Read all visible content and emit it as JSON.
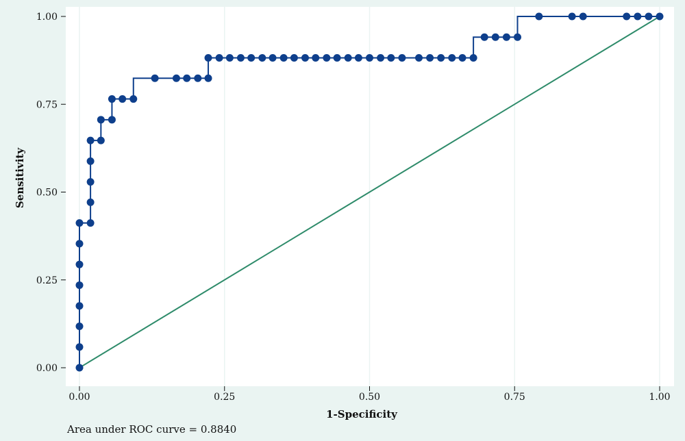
{
  "chart_data": {
    "type": "line",
    "xlabel": "1-Specificity",
    "ylabel": "Sensitivity",
    "note": "Area under ROC curve = 0.8840",
    "xlim": [
      0,
      1
    ],
    "ylim": [
      0,
      1
    ],
    "xticks": [
      "0.00",
      "0.25",
      "0.50",
      "0.75",
      "1.00"
    ],
    "yticks": [
      "0.00",
      "0.25",
      "0.50",
      "0.75",
      "1.00"
    ],
    "grid": "vertical",
    "colors": {
      "background": "#eaf4f2",
      "plot": "#ffffff",
      "roc": "#0e3f8c",
      "reference": "#2e8b6a",
      "grid": "#eaf4f2"
    },
    "series": [
      {
        "x": [
          0,
          0,
          0,
          0,
          0,
          0,
          0,
          0,
          0.019,
          0.019,
          0.019,
          0.019,
          0.019,
          0.037,
          0.037,
          0.056,
          0.056,
          0.074,
          0.093,
          0.13,
          0.167,
          0.185,
          0.204,
          0.222,
          0.222,
          0.241,
          0.259,
          0.278,
          0.296,
          0.315,
          0.333,
          0.352,
          0.37,
          0.389,
          0.407,
          0.426,
          0.444,
          0.463,
          0.481,
          0.5,
          0.519,
          0.537,
          0.556,
          0.585,
          0.604,
          0.623,
          0.642,
          0.66,
          0.679,
          0.698,
          0.717,
          0.736,
          0.755,
          0.792,
          0.849,
          0.868,
          0.943,
          0.962,
          0.981,
          1.0
        ],
        "y": [
          0,
          0.059,
          0.118,
          0.176,
          0.235,
          0.294,
          0.353,
          0.412,
          0.412,
          0.471,
          0.529,
          0.588,
          0.647,
          0.647,
          0.706,
          0.706,
          0.765,
          0.765,
          0.765,
          0.824,
          0.824,
          0.824,
          0.824,
          0.824,
          0.882,
          0.882,
          0.882,
          0.882,
          0.882,
          0.882,
          0.882,
          0.882,
          0.882,
          0.882,
          0.882,
          0.882,
          0.882,
          0.882,
          0.882,
          0.882,
          0.882,
          0.882,
          0.882,
          0.882,
          0.882,
          0.882,
          0.882,
          0.882,
          0.882,
          0.941,
          0.941,
          0.941,
          0.941,
          1.0,
          1.0,
          1.0,
          1.0,
          1.0,
          1.0,
          1.0
        ]
      },
      {
        "x": [
          0,
          1
        ],
        "y": [
          0,
          1
        ]
      }
    ]
  }
}
